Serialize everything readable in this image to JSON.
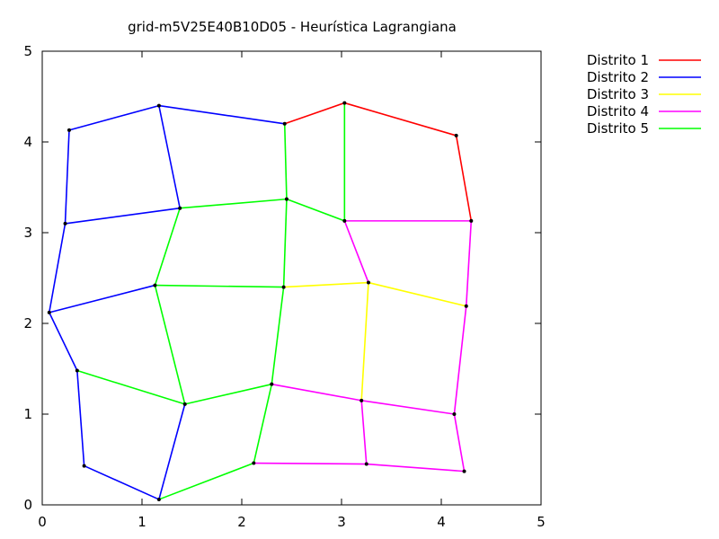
{
  "chart_data": {
    "type": "graph",
    "title": "grid-m5V25E40B10D05 -  Heurística Lagrangiana",
    "xlim": [
      0,
      5
    ],
    "ylim": [
      0,
      5
    ],
    "x_ticks": [
      "0",
      "1",
      "2",
      "3",
      "4",
      "5"
    ],
    "y_ticks": [
      "0",
      "1",
      "2",
      "3",
      "4",
      "5"
    ],
    "legend_position": "right-outside",
    "districts": [
      {
        "name": "Distrito 1",
        "color": "#ff0000"
      },
      {
        "name": "Distrito 2",
        "color": "#0000ff"
      },
      {
        "name": "Distrito 3",
        "color": "#ffff00"
      },
      {
        "name": "Distrito 4",
        "color": "#ff00ff"
      },
      {
        "name": "Distrito 5",
        "color": "#00ff00"
      }
    ],
    "nodes": [
      [
        0.27,
        4.13
      ],
      [
        1.17,
        4.4
      ],
      [
        2.43,
        4.2
      ],
      [
        3.03,
        4.43
      ],
      [
        4.15,
        4.07
      ],
      [
        0.23,
        3.1
      ],
      [
        1.38,
        3.27
      ],
      [
        2.45,
        3.37
      ],
      [
        3.03,
        3.13
      ],
      [
        4.3,
        3.13
      ],
      [
        0.07,
        2.12
      ],
      [
        1.13,
        2.42
      ],
      [
        2.42,
        2.4
      ],
      [
        3.27,
        2.45
      ],
      [
        4.25,
        2.19
      ],
      [
        0.35,
        1.48
      ],
      [
        1.43,
        1.11
      ],
      [
        2.3,
        1.33
      ],
      [
        3.2,
        1.15
      ],
      [
        4.13,
        1.0
      ],
      [
        0.42,
        0.43
      ],
      [
        1.17,
        0.06
      ],
      [
        2.12,
        0.46
      ],
      [
        3.25,
        0.45
      ],
      [
        4.23,
        0.37
      ]
    ],
    "edges": [
      [
        2,
        3,
        0
      ],
      [
        3,
        4,
        0
      ],
      [
        4,
        9,
        0
      ],
      [
        0,
        1,
        1
      ],
      [
        1,
        2,
        1
      ],
      [
        0,
        5,
        1
      ],
      [
        1,
        6,
        1
      ],
      [
        5,
        6,
        1
      ],
      [
        5,
        10,
        1
      ],
      [
        10,
        11,
        1
      ],
      [
        10,
        15,
        1
      ],
      [
        15,
        20,
        1
      ],
      [
        20,
        21,
        1
      ],
      [
        21,
        16,
        1
      ],
      [
        12,
        13,
        2
      ],
      [
        13,
        14,
        2
      ],
      [
        13,
        18,
        2
      ],
      [
        8,
        9,
        3
      ],
      [
        8,
        13,
        3
      ],
      [
        9,
        14,
        3
      ],
      [
        14,
        19,
        3
      ],
      [
        17,
        18,
        3
      ],
      [
        18,
        19,
        3
      ],
      [
        18,
        23,
        3
      ],
      [
        19,
        24,
        3
      ],
      [
        22,
        23,
        3
      ],
      [
        23,
        24,
        3
      ],
      [
        2,
        7,
        4
      ],
      [
        3,
        8,
        4
      ],
      [
        6,
        7,
        4
      ],
      [
        7,
        8,
        4
      ],
      [
        7,
        12,
        4
      ],
      [
        6,
        11,
        4
      ],
      [
        11,
        12,
        4
      ],
      [
        11,
        16,
        4
      ],
      [
        12,
        17,
        4
      ],
      [
        15,
        16,
        4
      ],
      [
        16,
        17,
        4
      ],
      [
        17,
        22,
        4
      ],
      [
        21,
        22,
        4
      ]
    ]
  }
}
